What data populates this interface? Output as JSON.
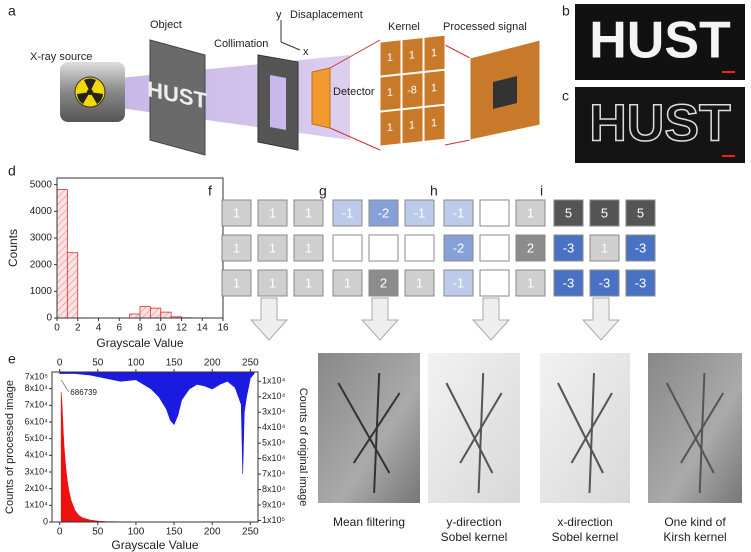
{
  "panel_a": {
    "label": "a",
    "source": "X-ray source",
    "object": "Object",
    "collimation": "Collimation",
    "y_axis": "y",
    "displacement": "Disaplacement",
    "x_axis": "x",
    "kernel": "Kernel",
    "processed": "Processed signal",
    "detector": "Detector",
    "kernel_values": [
      [
        1,
        1,
        1
      ],
      [
        1,
        -8,
        1
      ],
      [
        1,
        1,
        1
      ]
    ]
  },
  "panel_b": {
    "label": "b",
    "text": "HUST"
  },
  "panel_c": {
    "label": "c",
    "text": "HUST"
  },
  "kernels": [
    {
      "label": "f",
      "values": [
        [
          1,
          1,
          1
        ],
        [
          1,
          1,
          1
        ],
        [
          1,
          1,
          1
        ]
      ],
      "caption": [
        "Mean filtering"
      ]
    },
    {
      "label": "g",
      "values": [
        [
          -1,
          -2,
          -1
        ],
        [
          null,
          null,
          null
        ],
        [
          1,
          2,
          1
        ]
      ],
      "caption": [
        "y-direction",
        "Sobel kernel"
      ]
    },
    {
      "label": "h",
      "values": [
        [
          -1,
          null,
          1
        ],
        [
          -2,
          null,
          2
        ],
        [
          -1,
          null,
          1
        ]
      ],
      "caption": [
        "x-direction",
        "Sobel kernel"
      ]
    },
    {
      "label": "i",
      "values": [
        [
          5,
          5,
          5
        ],
        [
          -3,
          1,
          -3
        ],
        [
          -3,
          -3,
          -3
        ]
      ],
      "caption": [
        "One kind of",
        "Kirsh kernel"
      ]
    }
  ],
  "chart_data": [
    {
      "type": "histogram",
      "label": "d",
      "xlabel": "Grayscale Value",
      "ylabel": "Counts",
      "color": "#e03030",
      "bins": [
        0,
        1,
        2,
        3,
        4,
        5,
        6,
        7,
        8,
        9,
        10,
        11,
        12,
        13
      ],
      "counts": [
        4820,
        2450,
        5,
        3,
        2,
        2,
        3,
        150,
        430,
        370,
        220,
        45,
        10
      ],
      "xlim": [
        0,
        16
      ],
      "xticks": [
        0,
        2,
        4,
        6,
        8,
        10,
        12,
        14,
        16
      ],
      "ylim": [
        0,
        5250
      ],
      "yticks": [
        0,
        1000,
        2000,
        3000,
        4000,
        5000
      ]
    },
    {
      "type": "area",
      "label": "e",
      "xlabel": "Grayscale Value",
      "ylabel": "Counts of processed image",
      "y2label": "Counts of original image",
      "annotation": "686739",
      "break_label": "7x10⁵",
      "xlim": [
        -10,
        260
      ],
      "xticks": [
        0,
        50,
        100,
        150,
        200,
        250
      ],
      "x2ticks": [
        0,
        50,
        100,
        150,
        200,
        250
      ],
      "ylim": [
        0,
        90000
      ],
      "yticks": [
        0,
        {
          "value": 10000,
          "label": "1x10⁴"
        },
        {
          "value": 20000,
          "label": "2x10⁴"
        },
        {
          "value": 30000,
          "label": "3x10⁴"
        },
        {
          "value": 40000,
          "label": "4x10⁴"
        },
        {
          "value": 50000,
          "label": "5x10⁴"
        },
        {
          "value": 60000,
          "label": "6x10⁴"
        },
        {
          "value": 70000,
          "label": "7x10⁴"
        },
        {
          "value": 80000,
          "label": "8x10⁴"
        }
      ],
      "y2lim": [
        4000,
        101000
      ],
      "y2_inverted": true,
      "y2ticks": [
        {
          "value": 10000,
          "label": "1x10⁴"
        },
        {
          "value": 20000,
          "label": "2x10⁴"
        },
        {
          "value": 30000,
          "label": "3x10⁴"
        },
        {
          "value": 40000,
          "label": "4x10⁴"
        },
        {
          "value": 50000,
          "label": "5x10⁴"
        },
        {
          "value": 60000,
          "label": "6x10⁴"
        },
        {
          "value": 70000,
          "label": "7x10⁴"
        },
        {
          "value": 80000,
          "label": "8x10⁴"
        },
        {
          "value": 90000,
          "label": "9x10⁴"
        },
        {
          "value": 100000,
          "label": "1x10⁵"
        }
      ],
      "series": [
        {
          "color": "#ee1111",
          "x": [
            2,
            3,
            4,
            5,
            6,
            8,
            10,
            12,
            15,
            20,
            25,
            30,
            40,
            50,
            60,
            80,
            100,
            150,
            200,
            250
          ],
          "values": [
            78000,
            72000,
            62000,
            52000,
            44000,
            33000,
            25000,
            19000,
            13000,
            7000,
            4000,
            2500,
            1200,
            600,
            300,
            100,
            50,
            0,
            0,
            0
          ]
        },
        {
          "color": "#1a1ae0",
          "axis": "y2",
          "x": [
            0,
            20,
            40,
            60,
            80,
            100,
            110,
            120,
            130,
            140,
            145,
            150,
            155,
            160,
            170,
            180,
            190,
            200,
            210,
            220,
            230,
            238,
            240,
            242,
            245,
            250,
            255
          ],
          "values": [
            5000,
            5000,
            6000,
            8000,
            10000,
            9000,
            12000,
            15000,
            20000,
            28000,
            35000,
            38000,
            32000,
            22000,
            15000,
            12000,
            13000,
            15000,
            12000,
            10000,
            14000,
            25000,
            70000,
            30000,
            20000,
            8000,
            5000
          ]
        }
      ]
    }
  ]
}
